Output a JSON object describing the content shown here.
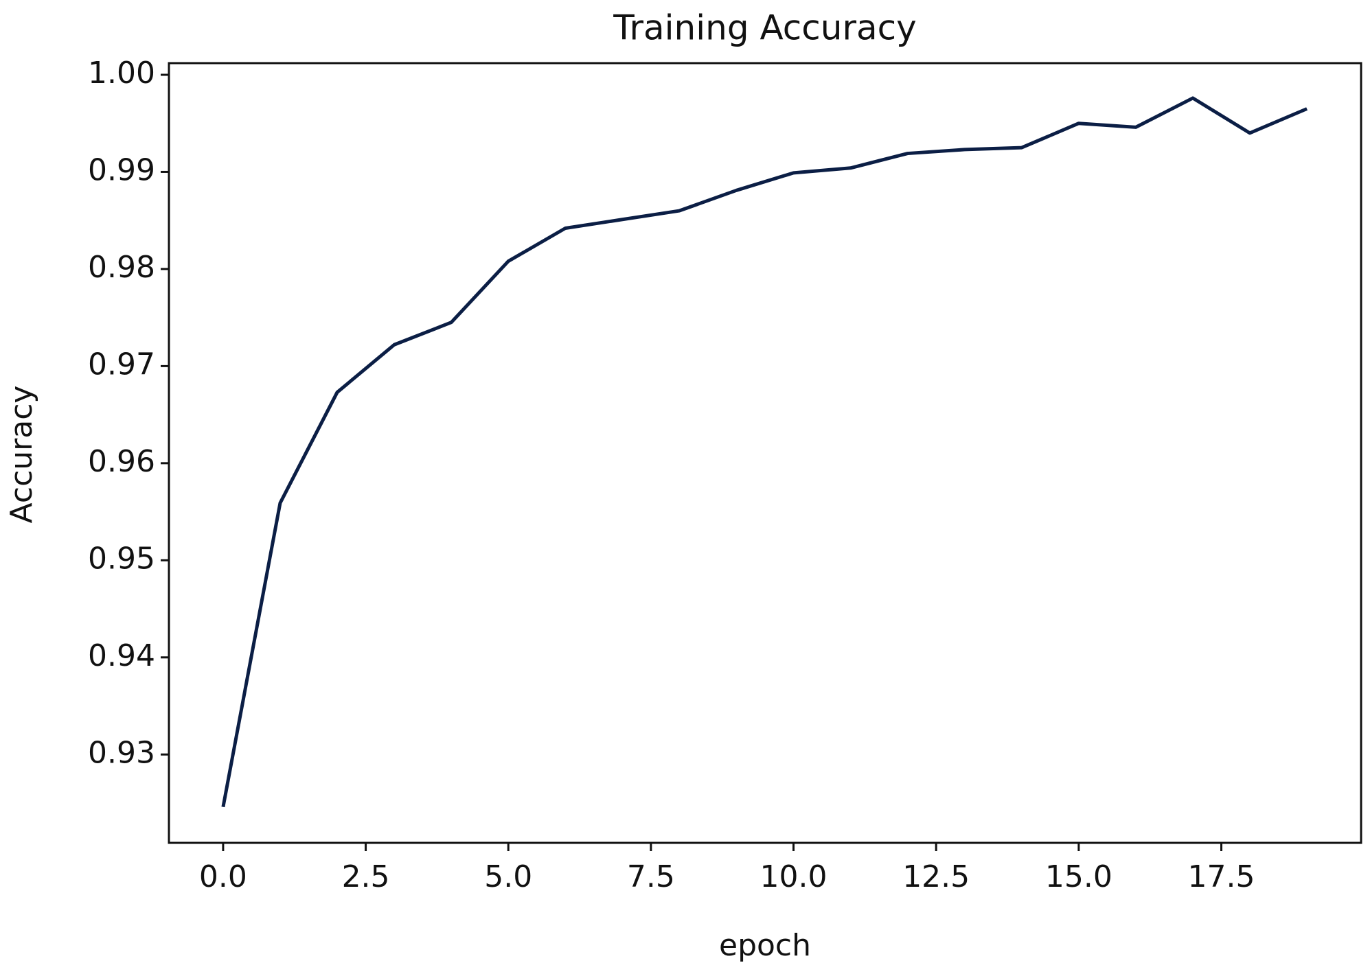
{
  "chart_data": {
    "type": "line",
    "title": "Training Accuracy",
    "x_label": "epoch",
    "y_label": "Accuracy",
    "x": [
      0,
      1,
      2,
      3,
      4,
      5,
      6,
      7,
      8,
      9,
      10,
      11,
      12,
      13,
      14,
      15,
      16,
      17,
      18,
      19
    ],
    "series": [
      {
        "color": "#0b1e45",
        "values": [
          0.9246,
          0.9559,
          0.9673,
          0.9722,
          0.9745,
          0.9808,
          0.9842,
          0.9851,
          0.986,
          0.9881,
          0.9899,
          0.9904,
          0.9919,
          0.9923,
          0.9925,
          0.995,
          0.9946,
          0.9976,
          0.994,
          0.9965
        ]
      }
    ],
    "xlim": [
      -0.95,
      19.95
    ],
    "xticks": [
      {
        "value": 0,
        "label": "0.0"
      },
      2.5,
      {
        "value": 5,
        "label": "5.0"
      },
      7.5,
      {
        "value": 10,
        "label": "10.0"
      },
      12.5,
      {
        "value": 15,
        "label": "15.0"
      },
      17.5
    ],
    "ylim": [
      0.9209,
      1.0012
    ],
    "yticks": [
      0.93,
      0.94,
      0.95,
      0.96,
      0.97,
      0.98,
      0.99,
      {
        "value": 1,
        "label": "1.00"
      }
    ],
    "grid": false
  }
}
